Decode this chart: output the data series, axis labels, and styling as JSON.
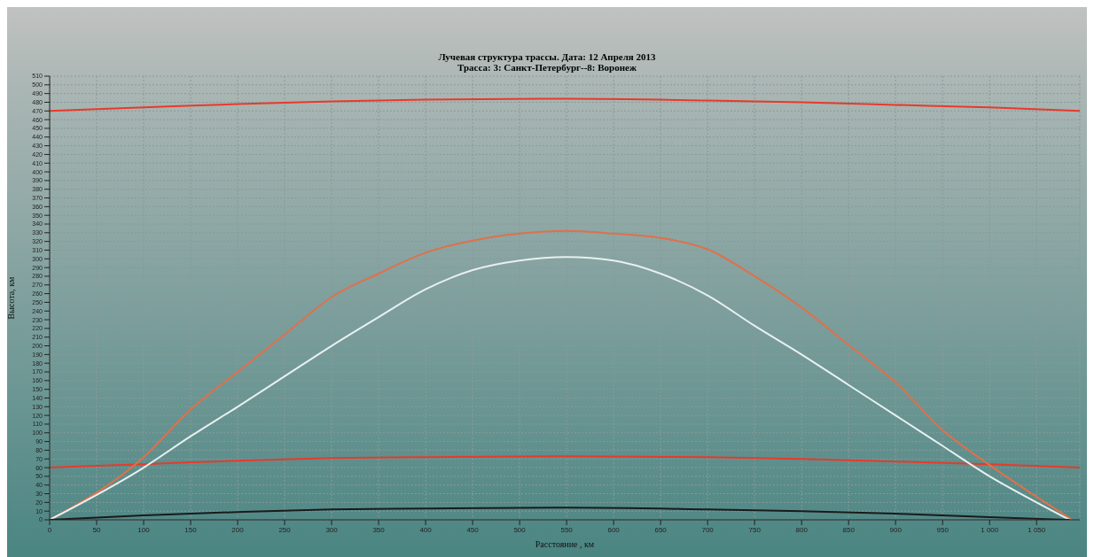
{
  "chart_data": {
    "type": "line",
    "title": "Лучевая структура трассы.  Дата: 12 Апреля 2013",
    "subtitle": "Трасса: 3: Санкт-Петербург--8: Воронеж",
    "xlabel": "Расстояние , км",
    "ylabel": "Высота, км",
    "xlim": [
      0,
      1096
    ],
    "xticks": [
      0,
      50,
      100,
      150,
      200,
      250,
      300,
      350,
      400,
      450,
      500,
      550,
      600,
      650,
      700,
      750,
      800,
      850,
      900,
      950,
      {
        "value": 1000,
        "label": "1 000"
      },
      {
        "value": 1050,
        "label": "1 050"
      }
    ],
    "ylim": [
      0,
      510
    ],
    "yticks": [
      0,
      10,
      20,
      30,
      40,
      50,
      60,
      70,
      80,
      90,
      100,
      110,
      120,
      130,
      140,
      150,
      160,
      170,
      180,
      190,
      200,
      210,
      220,
      230,
      240,
      250,
      260,
      270,
      280,
      290,
      300,
      310,
      320,
      330,
      340,
      350,
      360,
      370,
      380,
      390,
      400,
      410,
      420,
      430,
      440,
      450,
      460,
      470,
      480,
      490,
      500,
      510
    ],
    "grid": true,
    "marker": "none",
    "line_style": "solid",
    "series": [
      {
        "color": "#e83a2a",
        "x": [
          0,
          100,
          200,
          300,
          400,
          550,
          700,
          800,
          900,
          1000,
          1096
        ],
        "values": [
          470,
          474,
          478,
          481,
          483,
          484,
          482,
          480,
          477,
          474,
          470
        ]
      },
      {
        "color": "#e83a2a",
        "x": [
          0,
          100,
          200,
          300,
          400,
          550,
          700,
          800,
          900,
          1000,
          1096
        ],
        "values": [
          60,
          64,
          68,
          71,
          72,
          73,
          72,
          70,
          67,
          64,
          60
        ]
      },
      {
        "color": "#e0704a",
        "x": [
          0,
          100,
          150,
          200,
          250,
          300,
          350,
          400,
          450,
          500,
          550,
          600,
          650,
          700,
          750,
          800,
          850,
          900,
          950,
          1000,
          1088
        ],
        "values": [
          0,
          72,
          127,
          170,
          213,
          256,
          283,
          307,
          321,
          329,
          332,
          329,
          324,
          311,
          280,
          244,
          201,
          158,
          103,
          63,
          0
        ]
      },
      {
        "color": "#e8f0f0",
        "x": [
          0,
          100,
          150,
          200,
          250,
          300,
          350,
          400,
          450,
          500,
          550,
          600,
          650,
          700,
          750,
          800,
          850,
          900,
          950,
          1000,
          1050,
          1085
        ],
        "values": [
          0,
          60,
          96,
          130,
          165,
          200,
          233,
          265,
          287,
          298,
          302,
          298,
          283,
          258,
          223,
          190,
          155,
          120,
          85,
          50,
          20,
          0
        ]
      },
      {
        "color": "#1a1a1a",
        "x": [
          0,
          100,
          200,
          300,
          400,
          550,
          700,
          800,
          900,
          1000,
          1085
        ],
        "values": [
          0,
          5,
          9,
          12,
          13,
          14,
          12,
          10,
          7,
          3,
          0
        ]
      }
    ]
  }
}
